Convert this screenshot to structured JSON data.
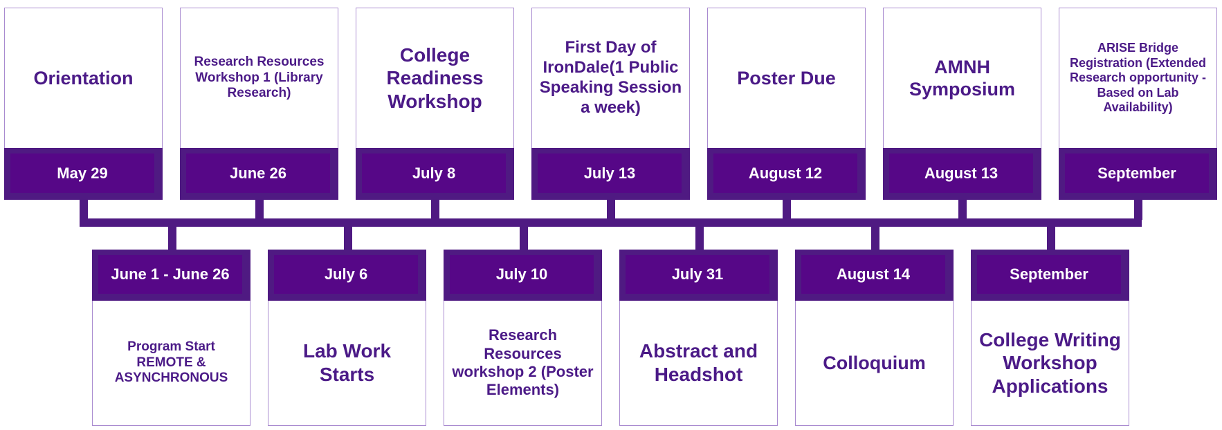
{
  "colors": {
    "primary": "#4f1a82",
    "band": "#560787",
    "text": "#4b1a87",
    "border": "#a98bd0"
  },
  "top_events": [
    {
      "title": "Orientation",
      "date": "May 29"
    },
    {
      "title": "Research Resources Workshop 1 (Library Research)",
      "date": "June 26"
    },
    {
      "title": "College Readiness Workshop",
      "date": "July 8"
    },
    {
      "title": "First Day of IronDale(1 Public Speaking Session a week)",
      "date": "July 13"
    },
    {
      "title": "Poster Due",
      "date": "August 12"
    },
    {
      "title": "AMNH Symposium",
      "date": "August 13"
    },
    {
      "title": "ARISE Bridge Registration (Extended Research opportunity - Based on Lab Availability)",
      "date": "September"
    }
  ],
  "bottom_events": [
    {
      "date": "June 1 - June 26",
      "title": "Program Start REMOTE & ASYNCHRONOUS"
    },
    {
      "date": "July 6",
      "title": "Lab Work Starts"
    },
    {
      "date": "July 10",
      "title": "Research Resources workshop 2 (Poster Elements)"
    },
    {
      "date": "July 31",
      "title": "Abstract and Headshot"
    },
    {
      "date": "August 14",
      "title": "Colloquium"
    },
    {
      "date": "September",
      "title": "College Writing Workshop Applications"
    }
  ]
}
